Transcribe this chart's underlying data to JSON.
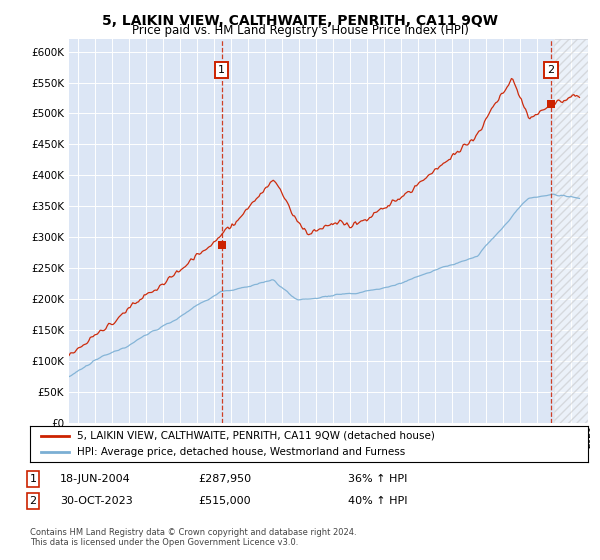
{
  "title": "5, LAIKIN VIEW, CALTHWAITE, PENRITH, CA11 9QW",
  "subtitle": "Price paid vs. HM Land Registry's House Price Index (HPI)",
  "hpi_label": "HPI: Average price, detached house, Westmorland and Furness",
  "property_label": "5, LAIKIN VIEW, CALTHWAITE, PENRITH, CA11 9QW (detached house)",
  "annotation1_date": "18-JUN-2004",
  "annotation1_price": "£287,950",
  "annotation1_hpi": "36% ↑ HPI",
  "annotation1_year": 2004.47,
  "annotation1_value": 287950,
  "annotation2_date": "30-OCT-2023",
  "annotation2_price": "£515,000",
  "annotation2_hpi": "40% ↑ HPI",
  "annotation2_year": 2023.83,
  "annotation2_value": 515000,
  "ylim": [
    0,
    620000
  ],
  "xlim_start": 1995.5,
  "xlim_end": 2026.0,
  "hpi_color": "#7bafd4",
  "price_color": "#cc2200",
  "bg_color": "#dce6f5",
  "grid_color": "#ffffff",
  "footer": "Contains HM Land Registry data © Crown copyright and database right 2024.\nThis data is licensed under the Open Government Licence v3.0."
}
